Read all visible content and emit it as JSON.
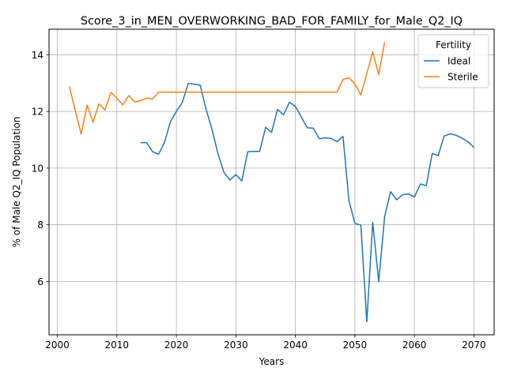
{
  "chart_data": {
    "type": "line",
    "title": "Score_3_in_MEN_OVERWORKING_BAD_FOR_FAMILY_for_Male_Q2_IQ",
    "xlabel": "Years",
    "ylabel": "% of Male Q2_IQ Population",
    "xlim": [
      1998.6,
      2073.4
    ],
    "ylim": [
      4.12,
      14.9
    ],
    "xticks": [
      2000,
      2010,
      2020,
      2030,
      2040,
      2050,
      2060,
      2070
    ],
    "yticks": [
      6,
      8,
      10,
      12,
      14
    ],
    "grid": true,
    "legend": {
      "title": "Fertility",
      "placement": "top-right"
    },
    "series": [
      {
        "name": "Ideal",
        "color": "#1f77b4",
        "x": [
          2014,
          2015,
          2016,
          2017,
          2018,
          2019,
          2020,
          2021,
          2022,
          2023,
          2024,
          2025,
          2026,
          2027,
          2028,
          2029,
          2030,
          2031,
          2032,
          2033,
          2034,
          2035,
          2036,
          2037,
          2038,
          2039,
          2040,
          2041,
          2042,
          2043,
          2044,
          2045,
          2046,
          2047,
          2048,
          2049,
          2050,
          2051,
          2052,
          2053,
          2054,
          2055,
          2056,
          2057,
          2058,
          2059,
          2060,
          2061,
          2062,
          2063,
          2064,
          2065,
          2066,
          2067,
          2068,
          2069,
          2070
        ],
        "y": [
          10.9,
          10.9,
          10.58,
          10.49,
          10.9,
          11.64,
          12.0,
          12.32,
          12.99,
          12.96,
          12.93,
          12.07,
          11.36,
          10.5,
          9.85,
          9.58,
          9.77,
          9.55,
          10.58,
          10.59,
          10.59,
          11.44,
          11.26,
          12.07,
          11.88,
          12.32,
          12.18,
          11.8,
          11.42,
          11.41,
          11.04,
          11.07,
          11.05,
          10.93,
          11.12,
          8.85,
          8.05,
          7.99,
          4.58,
          8.09,
          6.0,
          8.29,
          9.17,
          8.88,
          9.06,
          9.09,
          8.98,
          9.44,
          9.38,
          10.52,
          10.44,
          11.13,
          11.21,
          11.16,
          11.06,
          10.93,
          10.73
        ]
      },
      {
        "name": "Sterile",
        "color": "#ff7f0e",
        "x": [
          2002,
          2003,
          2004,
          2005,
          2006,
          2007,
          2008,
          2009,
          2010,
          2011,
          2012,
          2013,
          2014,
          2015,
          2016,
          2017,
          2018,
          2019,
          2020,
          2021,
          2022,
          2023,
          2024,
          2025,
          2026,
          2027,
          2028,
          2029,
          2030,
          2031,
          2032,
          2033,
          2034,
          2035,
          2036,
          2037,
          2038,
          2039,
          2040,
          2041,
          2042,
          2043,
          2044,
          2045,
          2046,
          2047,
          2048,
          2049,
          2050,
          2051,
          2052,
          2053,
          2054,
          2055
        ],
        "y": [
          12.89,
          12.04,
          11.2,
          12.22,
          11.62,
          12.27,
          12.05,
          12.67,
          12.47,
          12.23,
          12.56,
          12.33,
          12.38,
          12.47,
          12.43,
          12.68,
          12.68,
          12.68,
          12.68,
          12.68,
          12.68,
          12.68,
          12.68,
          12.68,
          12.68,
          12.68,
          12.68,
          12.68,
          12.68,
          12.68,
          12.68,
          12.68,
          12.68,
          12.68,
          12.68,
          12.68,
          12.68,
          12.68,
          12.68,
          12.68,
          12.68,
          12.68,
          12.68,
          12.68,
          12.68,
          12.68,
          13.13,
          13.19,
          12.98,
          12.58,
          13.33,
          14.1,
          13.3,
          14.44
        ]
      }
    ]
  }
}
